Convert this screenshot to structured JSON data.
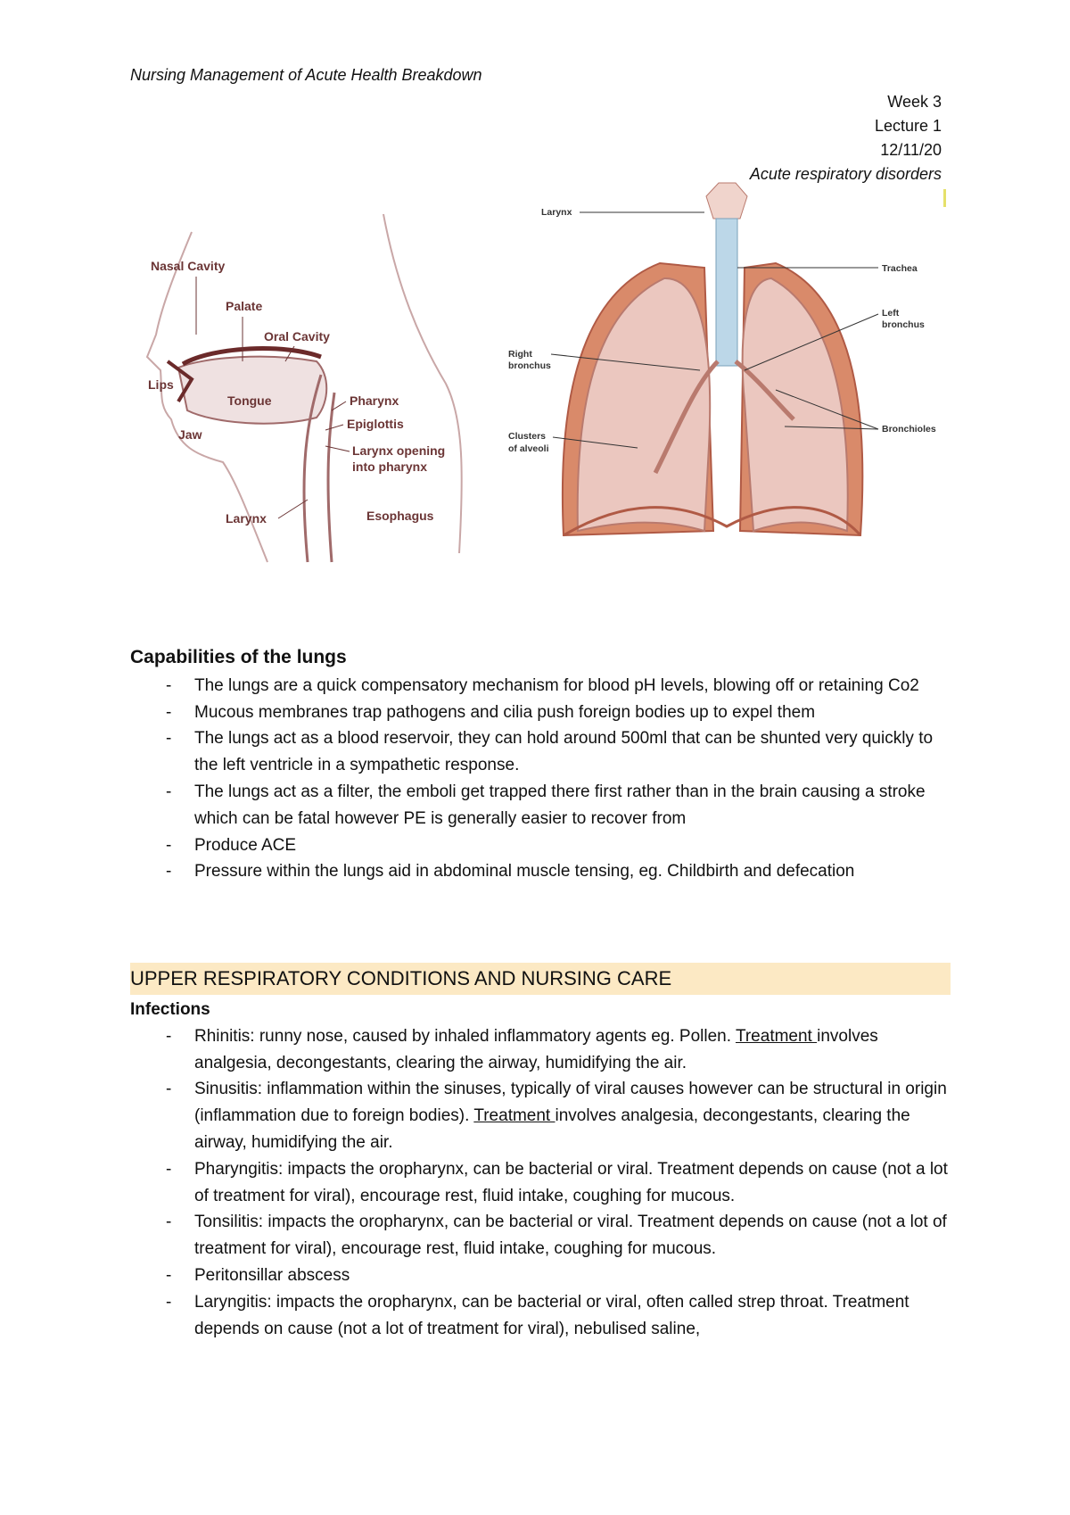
{
  "header": {
    "course": "Nursing Management of Acute Health Breakdown",
    "week": "Week 3",
    "lecture": "Lecture 1",
    "date": "12/11/20",
    "topic": "Acute respiratory disorders"
  },
  "figures": {
    "head": {
      "nasal_cavity": "Nasal Cavity",
      "palate": "Palate",
      "oral_cavity": "Oral Cavity",
      "lips": "Lips",
      "tongue": "Tongue",
      "jaw": "Jaw",
      "pharynx": "Pharynx",
      "epiglottis": "Epiglottis",
      "larynx_opening": [
        "Larynx opening",
        "into pharynx"
      ],
      "larynx": "Larynx",
      "esophagus": "Esophagus"
    },
    "lungs": {
      "larynx": "Larynx",
      "trachea": "Trachea",
      "left_bronchus": [
        "Left",
        "bronchus"
      ],
      "right_bronchus": [
        "Right",
        "bronchus"
      ],
      "alveoli": [
        "Clusters",
        "of alveoli"
      ],
      "bronchioles": "Bronchioles"
    }
  },
  "capabilities": {
    "heading": "Capabilities of the lungs",
    "items": [
      "The lungs are a quick compensatory mechanism for blood pH levels, blowing off or retaining Co2",
      "Mucous membranes trap pathogens and cilia push foreign bodies up to expel them",
      "The lungs act as a blood reservoir, they can hold around 500ml that can be shunted very quickly to the left ventricle in a sympathetic response.",
      "The lungs act as a filter, the emboli get trapped there first rather than in the brain causing a stroke which can be fatal however PE is generally easier to recover from",
      "Produce ACE",
      "Pressure within the lungs aid in abdominal muscle tensing, eg. Childbirth and defecation"
    ]
  },
  "upper": {
    "heading": "UPPER RESPIRATORY CONDITIONS AND NURSING CARE",
    "subheading": "Infections",
    "items": [
      [
        "Rhinitis: runny nose, caused by inhaled inflammatory agents eg. Pollen. ",
        {
          "text": "Treatment ",
          "underline": true
        },
        "involves analgesia, decongestants, clearing the airway, humidifying the air."
      ],
      [
        "Sinusitis: inflammation within the sinuses, typically of viral causes however can be structural in origin (inflammation due to foreign bodies). ",
        {
          "text": "Treatment ",
          "underline": true
        },
        "involves analgesia, decongestants, clearing the airway, humidifying the air."
      ],
      [
        "Pharyngitis: impacts the oropharynx, can be bacterial or viral. Treatment depends on cause (not a lot of treatment for viral), encourage rest, fluid intake, coughing for mucous."
      ],
      [
        "Tonsilitis: impacts the oropharynx, can be bacterial or viral. Treatment depends on cause (not a lot of treatment for viral), encourage rest, fluid intake, coughing for mucous."
      ],
      [
        "Peritonsillar abscess"
      ],
      [
        "Laryngitis: impacts the oropharynx, can be bacterial or viral, often called strep throat. Treatment depends on cause (not a lot of treatment for viral), nebulised saline,"
      ]
    ]
  }
}
